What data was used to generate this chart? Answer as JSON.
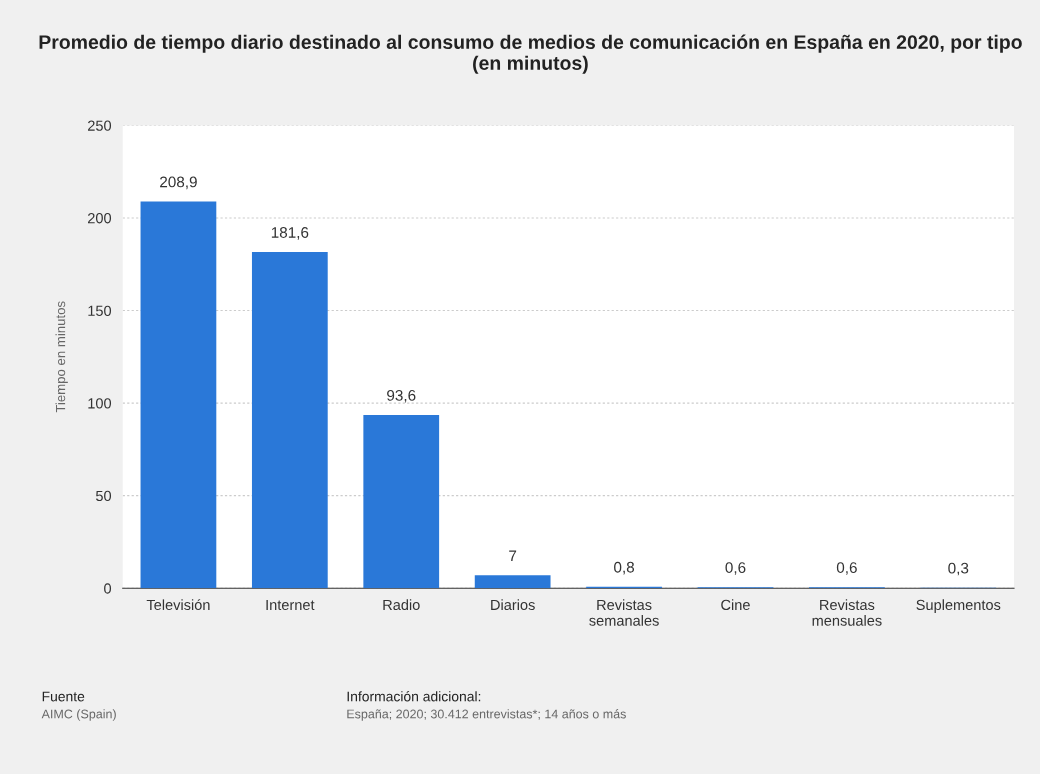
{
  "chart_data": {
    "type": "bar",
    "title": "Promedio de tiempo diario destinado al consumo de medios de comunicación en España en 2020, por tipo (en minutos)",
    "ylabel": "Tiempo en minutos",
    "categories": [
      "Televisión",
      "Internet",
      "Radio",
      "Diarios",
      "Revistas\nsemanales",
      "Cine",
      "Revistas\nmensuales",
      "Suplementos"
    ],
    "values": [
      208.9,
      181.6,
      93.6,
      7,
      0.8,
      0.6,
      0.6,
      0.3
    ],
    "value_labels": [
      "208,9",
      "181,6",
      "93,6",
      "7",
      "0,8",
      "0,6",
      "0,6",
      "0,3"
    ],
    "color": "#2a78d8",
    "ylim": [
      0,
      250
    ],
    "yticks": [
      0,
      50,
      100,
      150,
      200,
      250
    ],
    "grid": "y",
    "legend": false,
    "annotations": [
      "Fuente",
      "AIMC (Spain)",
      "Información adicional:",
      "España; 2020; 30.412 entrevistas*; 14 años o más"
    ]
  }
}
